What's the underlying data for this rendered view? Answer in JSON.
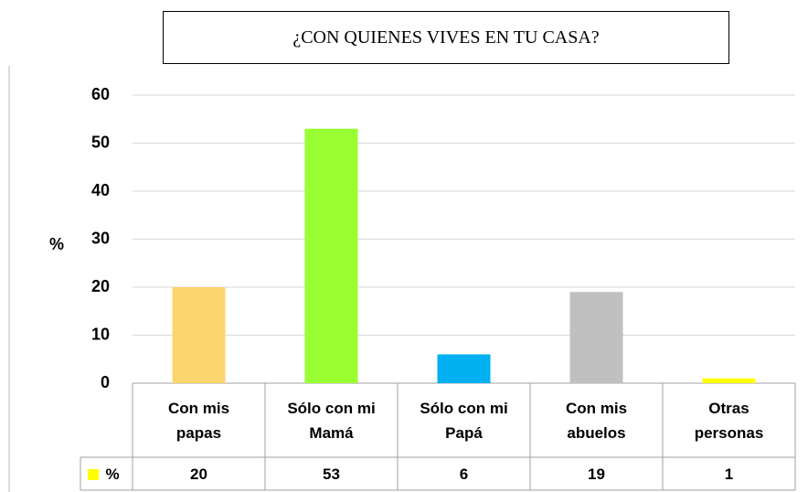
{
  "chart_data": {
    "type": "bar",
    "title": "¿CON QUIENES VIVES EN TU CASA?",
    "ylabel": "%",
    "categories": [
      "Con mis papas",
      "Sólo con mi Mamá",
      "Sólo con mi Papá",
      "Con mis abuelos",
      "Otras personas"
    ],
    "series": [
      {
        "name": "%",
        "color": "#ffff00",
        "values": [
          20,
          53,
          6,
          19,
          1
        ],
        "colors": [
          "#fdd56f",
          "#99ff33",
          "#00b0f0",
          "#c0c0c0",
          "#ffff00"
        ]
      }
    ],
    "ylim": [
      0,
      60
    ],
    "yticks": [
      0,
      10,
      20,
      30,
      40,
      50,
      60
    ],
    "grid": true
  }
}
